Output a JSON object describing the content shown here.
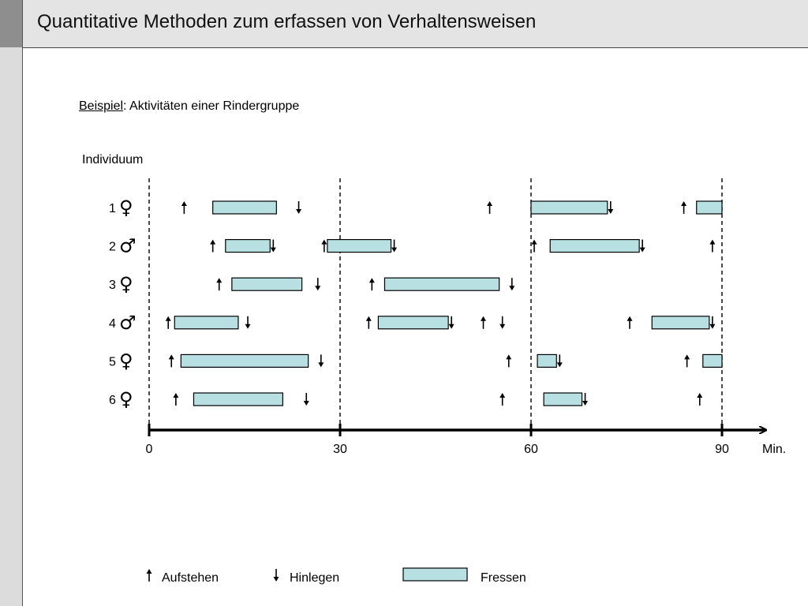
{
  "slide": {
    "title": "Quantitative Methoden zum erfassen von Verhaltensweisen",
    "example_label": "Beispiel",
    "example_rest": ": Aktivitäten einer Rindergruppe"
  },
  "chart_data": {
    "type": "timeline",
    "ylabel": "Individuum",
    "xunit": "Min.",
    "xlim": [
      0,
      90
    ],
    "xticks": [
      0,
      30,
      60,
      90
    ],
    "dashed_markers": [
      0,
      30,
      60,
      90
    ],
    "individuals": [
      {
        "number": "1",
        "sex": "♀",
        "aufstehen": [
          5.5,
          53.5,
          84
        ],
        "hinlegen": [
          23.5,
          72.5
        ],
        "fressen": [
          [
            10,
            20
          ],
          [
            60,
            72
          ],
          [
            86,
            90
          ]
        ]
      },
      {
        "number": "2",
        "sex": "♂",
        "aufstehen": [
          10,
          27.5,
          60.5,
          88.5
        ],
        "hinlegen": [
          19.5,
          38.5,
          77.5
        ],
        "fressen": [
          [
            12,
            19
          ],
          [
            28,
            38
          ],
          [
            63,
            77
          ]
        ]
      },
      {
        "number": "3",
        "sex": "♀",
        "aufstehen": [
          11,
          35
        ],
        "hinlegen": [
          26.5,
          57
        ],
        "fressen": [
          [
            13,
            24
          ],
          [
            37,
            55
          ]
        ]
      },
      {
        "number": "4",
        "sex": "♂",
        "aufstehen": [
          3,
          34.5,
          52.5,
          75.5
        ],
        "hinlegen": [
          15.5,
          47.5,
          55.5,
          88.5
        ],
        "fressen": [
          [
            4,
            14
          ],
          [
            36,
            47
          ],
          [
            79,
            88
          ]
        ]
      },
      {
        "number": "5",
        "sex": "♀",
        "aufstehen": [
          3.5,
          56.5,
          84.5
        ],
        "hinlegen": [
          27,
          64.5
        ],
        "fressen": [
          [
            5,
            25
          ],
          [
            61,
            64
          ],
          [
            87,
            90
          ]
        ]
      },
      {
        "number": "6",
        "sex": "♀",
        "aufstehen": [
          4.2,
          55.5,
          86.5
        ],
        "hinlegen": [
          24.7,
          68.5
        ],
        "fressen": [
          [
            7,
            21
          ],
          [
            62,
            68
          ]
        ]
      }
    ],
    "legend": {
      "aufstehen": "Aufstehen",
      "hinlegen": "Hinlegen",
      "fressen": "Fressen"
    },
    "colors": {
      "bar_fill": "#b8dfe2",
      "bar_stroke": "#000000"
    }
  }
}
